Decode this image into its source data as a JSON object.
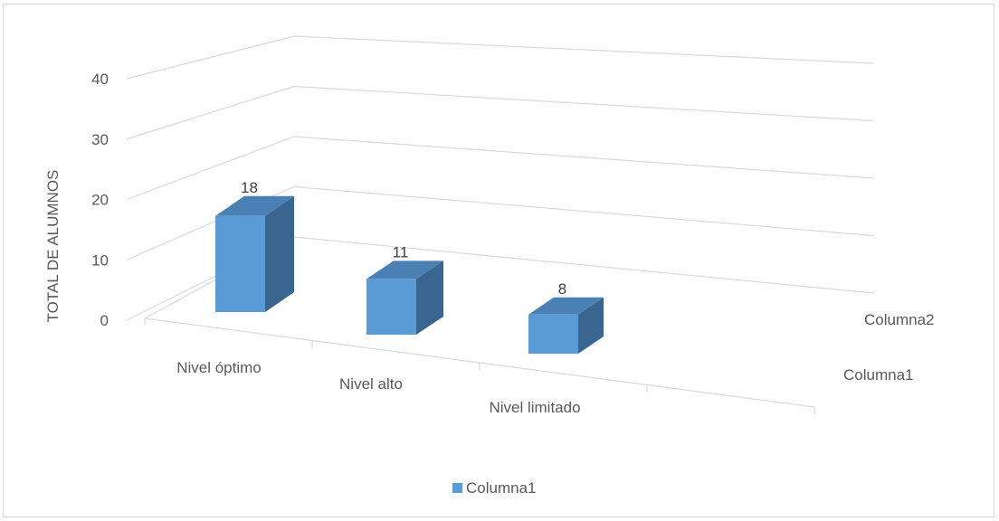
{
  "chart_data": {
    "type": "bar",
    "title": "",
    "ylabel": "TOTAL DE ALUMNOS",
    "xlabel": "",
    "categories": [
      "Nivel óptimo",
      "Nivel alto",
      "Nivel limitado"
    ],
    "series": [
      {
        "name": "Columna1",
        "values": [
          18,
          11,
          8
        ]
      }
    ],
    "depth_series": [
      "Columna2",
      "Columna1"
    ],
    "yticks": [
      "0",
      "10",
      "20",
      "30",
      "40"
    ],
    "ylim": [
      0,
      40
    ],
    "legend": {
      "position": "bottom",
      "entries": [
        "Columna1"
      ]
    },
    "grid": true,
    "colors": {
      "bar_front": "#5b9bd5",
      "bar_side": "#3a6591",
      "bar_top": "#4a80b4",
      "grid": "#d9d9d9",
      "text": "#595959"
    }
  }
}
